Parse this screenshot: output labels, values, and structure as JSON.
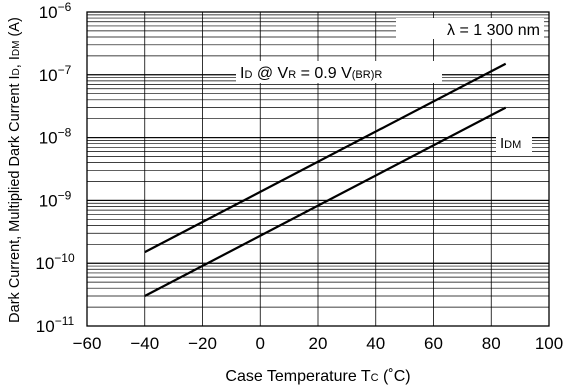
{
  "chart_data": {
    "type": "line",
    "xlabel": {
      "main": "Case Temperature  T",
      "sub": "C",
      "unit": " (˚C)"
    },
    "ylabel": {
      "main": "Dark Current, Multiplied Dark Current  I",
      "sub1": "D",
      "sep": ", I",
      "sub2": "DM",
      "unit": " (A)"
    },
    "x_ticks": [
      "−60",
      "−40",
      "−20",
      "0",
      "20",
      "40",
      "60",
      "80",
      "100"
    ],
    "x_tick_values": [
      -60,
      -40,
      -20,
      0,
      20,
      40,
      60,
      80,
      100
    ],
    "xlim": [
      -60,
      100
    ],
    "y_scale": "log",
    "ylim": [
      1e-11,
      1e-06
    ],
    "y_ticks": [
      {
        "base": "10",
        "exp": "−6",
        "value": 1e-06
      },
      {
        "base": "10",
        "exp": "−7",
        "value": 1e-07
      },
      {
        "base": "10",
        "exp": "−8",
        "value": 1e-08
      },
      {
        "base": "10",
        "exp": "−9",
        "value": 1e-09
      },
      {
        "base": "10",
        "exp": "−10",
        "value": 1e-10
      },
      {
        "base": "10",
        "exp": "−11",
        "value": 1e-11
      }
    ],
    "grid": true,
    "annotation_wavelength": "λ = 1 300 nm",
    "series": [
      {
        "label_parts": [
          "I",
          "D",
          " @ V",
          "R",
          " = 0.9 V",
          "(BR)R"
        ],
        "x": [
          -40,
          85
        ],
        "y": [
          1.5e-10,
          1.5e-07
        ]
      },
      {
        "label_parts": [
          "I",
          "DM"
        ],
        "x": [
          -40,
          85
        ],
        "y": [
          3e-11,
          3e-08
        ]
      }
    ],
    "line_color": "#000000"
  }
}
